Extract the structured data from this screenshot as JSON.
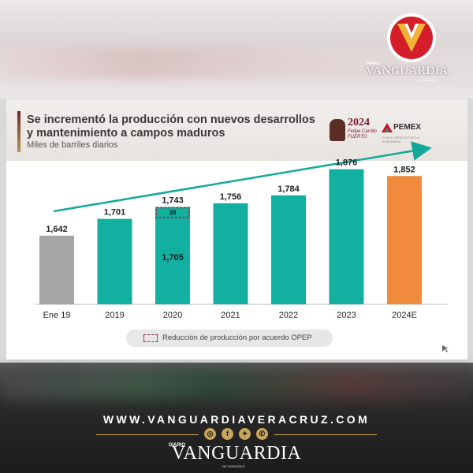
{
  "watermark": {
    "diario": "DIARIO",
    "brand": "VANGUARDIA",
    "tiny": "DE VERACRUZ"
  },
  "slide": {
    "title_line1": "Se incrementó la producción con nuevos desarrollos",
    "title_line2": "y mantenimiento a campos maduros",
    "subtitle": "Miles de barriles diarios",
    "logo_2024_year": "2024",
    "logo_2024_name": "Felipe Carrillo FUERTO",
    "pemex_word": "PEMEX",
    "pemex_sub": "POR EL RESCATE DE LA SOBERANÍA"
  },
  "chart_data": {
    "type": "bar",
    "categories": [
      "Ene 19",
      "2019",
      "2020",
      "2021",
      "2022",
      "2023",
      "2024E"
    ],
    "values": [
      1642,
      1701,
      1743,
      1756,
      1784,
      1876,
      1852
    ],
    "value_labels": [
      "1,642",
      "1,701",
      "1,743",
      "1,756",
      "1,784",
      "1,876",
      "1,852"
    ],
    "colors": [
      "#a6a6a6",
      "#12b0a0",
      "#12b0a0",
      "#12b0a0",
      "#12b0a0",
      "#12b0a0",
      "#f08a3c"
    ],
    "opec_reduction": {
      "category": "2020",
      "reduction": 38,
      "reduction_label": "38",
      "remaining": 1705,
      "remaining_label": "1,705"
    },
    "legend": "Reducción de producción por acuerdo OPEP",
    "trend_arrow": true,
    "ylim": [
      1400,
      1900
    ]
  },
  "footer": {
    "url": "WWW.VANGUARDIAVERACRUZ.COM",
    "diario": "DIARIO",
    "brand": "VANGUARDIA",
    "tiny": "DE VERACRUZ",
    "icons": [
      "instagram-icon",
      "facebook-icon",
      "twitter-icon",
      "whatsapp-icon"
    ],
    "accent": "#c9a55a"
  }
}
